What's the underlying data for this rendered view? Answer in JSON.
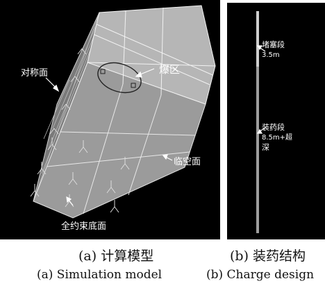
{
  "panel_a": {
    "labels": {
      "symmetry_face": "对称面",
      "blast_zone": "爆区",
      "free_face": "临空面",
      "fixed_bottom": "全约束底面"
    }
  },
  "panel_b": {
    "labels": {
      "stemming_line1": "堵塞段",
      "stemming_line2": "3.5m",
      "charge_line1": "装药段",
      "charge_line2": "8.5m+超",
      "charge_line3": "深"
    }
  },
  "captions": {
    "a_cn": "(a) 计算模型",
    "b_cn": "(b) 装药结构",
    "a_en": "(a) Simulation model",
    "b_en": "(b) Charge design"
  }
}
